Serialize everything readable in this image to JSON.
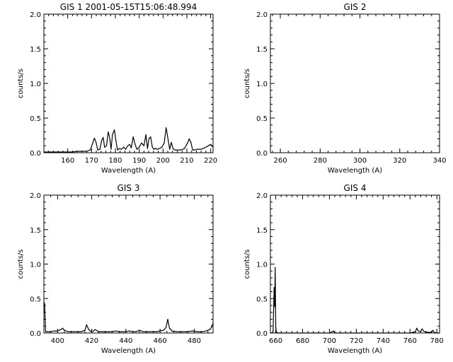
{
  "chart_data": [
    {
      "type": "line",
      "title": "GIS 1 2001-05-15T15:06:48.994",
      "xlabel": "Wavelength (A)",
      "ylabel": "counts/s",
      "xlim": [
        150,
        221
      ],
      "ylim": [
        0,
        2.0
      ],
      "xticks": [
        160,
        170,
        180,
        190,
        200,
        210,
        220
      ],
      "yticks": [
        0.0,
        0.5,
        1.0,
        1.5,
        2.0
      ],
      "ytick_labels": [
        "0.0",
        "0.5",
        "1.0",
        "1.5",
        "2.0"
      ],
      "grid": false,
      "series": [
        {
          "x": [
            150.0,
            152.0,
            154.0,
            156.0,
            158.0,
            160.0,
            162.0,
            164.0,
            166.0,
            168.0,
            169.5,
            170.5,
            171.2,
            171.9,
            172.6,
            173.5,
            174.2,
            174.9,
            175.5,
            176.3,
            177.0,
            177.6,
            178.2,
            178.8,
            179.6,
            180.2,
            180.9,
            181.6,
            182.5,
            183.5,
            184.3,
            185.2,
            186.0,
            186.7,
            187.5,
            188.3,
            189.0,
            190.0,
            191.0,
            192.0,
            192.8,
            193.5,
            194.1,
            194.8,
            195.5,
            196.2,
            196.9,
            197.6,
            198.5,
            199.5,
            200.5,
            201.3,
            202.0,
            202.8,
            203.5,
            204.2,
            205.0,
            206.0,
            207.5,
            209.0,
            210.3,
            211.0,
            211.7,
            212.4,
            213.2,
            214.5,
            216.0,
            217.5,
            219.0,
            220.0,
            221.0
          ],
          "y": [
            0.01,
            0.01,
            0.01,
            0.01,
            0.01,
            0.01,
            0.01,
            0.02,
            0.02,
            0.02,
            0.04,
            0.14,
            0.21,
            0.15,
            0.04,
            0.05,
            0.17,
            0.22,
            0.08,
            0.1,
            0.3,
            0.22,
            0.05,
            0.26,
            0.33,
            0.18,
            0.04,
            0.06,
            0.05,
            0.08,
            0.05,
            0.1,
            0.12,
            0.07,
            0.23,
            0.12,
            0.05,
            0.08,
            0.14,
            0.1,
            0.26,
            0.06,
            0.2,
            0.23,
            0.08,
            0.05,
            0.06,
            0.05,
            0.06,
            0.08,
            0.14,
            0.36,
            0.22,
            0.05,
            0.15,
            0.06,
            0.04,
            0.04,
            0.04,
            0.06,
            0.14,
            0.2,
            0.15,
            0.04,
            0.04,
            0.05,
            0.05,
            0.07,
            0.1,
            0.12,
            0.08
          ]
        }
      ]
    },
    {
      "type": "line",
      "title": "GIS 2",
      "xlabel": "Wavelength (A)",
      "ylabel": "counts/s",
      "xlim": [
        255,
        340
      ],
      "ylim": [
        0,
        2.0
      ],
      "xticks": [
        260,
        280,
        300,
        320,
        340
      ],
      "yticks": [
        0.0,
        0.5,
        1.0,
        1.5,
        2.0
      ],
      "ytick_labels": [
        "0.0",
        "0.5",
        "1.0",
        "1.5",
        "2.0"
      ],
      "grid": false,
      "series": []
    },
    {
      "type": "line",
      "title": "GIS 3",
      "xlabel": "Wavelength (A)",
      "ylabel": "counts/s",
      "xlim": [
        392,
        491
      ],
      "ylim": [
        0,
        2.0
      ],
      "xticks": [
        400,
        420,
        440,
        460,
        480
      ],
      "yticks": [
        0.0,
        0.5,
        1.0,
        1.5,
        2.0
      ],
      "ytick_labels": [
        "0.0",
        "0.5",
        "1.0",
        "1.5",
        "2.0"
      ],
      "grid": false,
      "series": [
        {
          "x": [
            392.0,
            392.4,
            393.0,
            394.5,
            396.0,
            398.0,
            400.0,
            402.0,
            403.0,
            404.0,
            406.0,
            408.0,
            410.0,
            412.0,
            414.0,
            416.0,
            417.0,
            418.0,
            419.0,
            420.0,
            421.0,
            422.0,
            424.0,
            426.0,
            428.0,
            430.0,
            432.0,
            434.0,
            436.0,
            438.0,
            440.0,
            442.0,
            444.0,
            446.0,
            448.0,
            450.0,
            452.0,
            454.0,
            456.0,
            458.0,
            460.0,
            462.0,
            463.5,
            464.5,
            465.5,
            467.0,
            470.0,
            473.0,
            476.0,
            479.0,
            482.0,
            485.0,
            487.0,
            489.0,
            490.0,
            491.0
          ],
          "y": [
            0.45,
            0.42,
            0.02,
            0.02,
            0.02,
            0.03,
            0.03,
            0.05,
            0.07,
            0.04,
            0.02,
            0.02,
            0.02,
            0.02,
            0.02,
            0.04,
            0.12,
            0.06,
            0.03,
            0.02,
            0.03,
            0.05,
            0.02,
            0.02,
            0.02,
            0.02,
            0.02,
            0.03,
            0.02,
            0.02,
            0.02,
            0.03,
            0.02,
            0.02,
            0.04,
            0.02,
            0.02,
            0.02,
            0.02,
            0.02,
            0.03,
            0.04,
            0.08,
            0.2,
            0.07,
            0.03,
            0.02,
            0.02,
            0.02,
            0.03,
            0.02,
            0.02,
            0.03,
            0.05,
            0.08,
            0.14
          ]
        }
      ]
    },
    {
      "type": "line",
      "title": "GIS 4",
      "xlabel": "Wavelength (A)",
      "ylabel": "counts/s",
      "xlim": [
        656,
        782
      ],
      "ylim": [
        0,
        2.0
      ],
      "xticks": [
        660,
        680,
        700,
        720,
        740,
        760,
        780
      ],
      "yticks": [
        0.0,
        0.5,
        1.0,
        1.5,
        2.0
      ],
      "ytick_labels": [
        "0.0",
        "0.5",
        "1.0",
        "1.5",
        "2.0"
      ],
      "grid": false,
      "series": [
        {
          "x": [
            656.0,
            657.0,
            658.0,
            658.8,
            659.2,
            659.6,
            660.0,
            660.5,
            662.0,
            665.0,
            670.0,
            680.0,
            690.0,
            700.0,
            702.0,
            703.0,
            704.0,
            710.0,
            720.0,
            730.0,
            740.0,
            750.0,
            760.0,
            764.0,
            765.0,
            766.0,
            768.0,
            769.0,
            770.0,
            772.0,
            776.0,
            777.0,
            778.0,
            780.0,
            782.0
          ],
          "y": [
            0.0,
            0.0,
            0.02,
            0.66,
            0.38,
            0.95,
            0.08,
            0.01,
            0.0,
            0.0,
            0.0,
            0.0,
            0.0,
            0.0,
            0.02,
            0.03,
            0.0,
            0.0,
            0.0,
            0.0,
            0.0,
            0.0,
            0.0,
            0.02,
            0.07,
            0.03,
            0.02,
            0.06,
            0.03,
            0.01,
            0.01,
            0.04,
            0.01,
            0.0,
            0.0
          ]
        }
      ]
    }
  ]
}
